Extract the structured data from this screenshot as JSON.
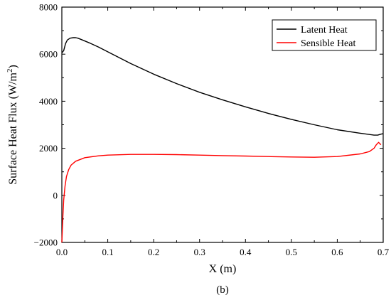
{
  "chart_data": {
    "type": "line",
    "panel_label": "(b)",
    "xlabel": "X (m)",
    "ylabel_main": "Surface Heat Flux (W/m",
    "ylabel_sup": "2",
    "ylabel_close": ")",
    "xlim": [
      0.0,
      0.7
    ],
    "ylim": [
      -2000,
      8000
    ],
    "x_ticks": [
      0.0,
      0.1,
      0.2,
      0.3,
      0.4,
      0.5,
      0.6,
      0.7
    ],
    "x_tick_labels": [
      "0.0",
      "0.1",
      "0.2",
      "0.3",
      "0.4",
      "0.5",
      "0.6",
      "0.7"
    ],
    "y_ticks": [
      -2000,
      0,
      2000,
      4000,
      6000,
      8000
    ],
    "y_tick_labels": [
      "−2000",
      "0",
      "2000",
      "4000",
      "6000",
      "8000"
    ],
    "grid": false,
    "legend_position": "top-right",
    "series": [
      {
        "name": "Latent Heat",
        "color": "#000000",
        "x": [
          0.0,
          0.004,
          0.008,
          0.012,
          0.018,
          0.025,
          0.03,
          0.035,
          0.045,
          0.06,
          0.08,
          0.1,
          0.15,
          0.2,
          0.25,
          0.3,
          0.35,
          0.4,
          0.45,
          0.5,
          0.55,
          0.6,
          0.65,
          0.68,
          0.688,
          0.695,
          0.7
        ],
        "y": [
          6050,
          6150,
          6450,
          6600,
          6680,
          6700,
          6700,
          6680,
          6600,
          6480,
          6300,
          6100,
          5600,
          5150,
          4750,
          4380,
          4060,
          3760,
          3480,
          3230,
          3000,
          2790,
          2640,
          2560,
          2560,
          2600,
          2620
        ]
      },
      {
        "name": "Sensible Heat",
        "color": "#ff0000",
        "x": [
          0.0,
          0.002,
          0.004,
          0.007,
          0.01,
          0.015,
          0.02,
          0.03,
          0.05,
          0.08,
          0.1,
          0.15,
          0.2,
          0.25,
          0.3,
          0.35,
          0.4,
          0.45,
          0.5,
          0.55,
          0.6,
          0.65,
          0.67,
          0.68,
          0.685,
          0.69,
          0.695
        ],
        "y": [
          -2000,
          -1000,
          -200,
          400,
          800,
          1100,
          1280,
          1450,
          1600,
          1680,
          1710,
          1740,
          1740,
          1730,
          1710,
          1690,
          1670,
          1650,
          1630,
          1620,
          1650,
          1760,
          1860,
          2000,
          2150,
          2250,
          2150
        ]
      }
    ]
  }
}
